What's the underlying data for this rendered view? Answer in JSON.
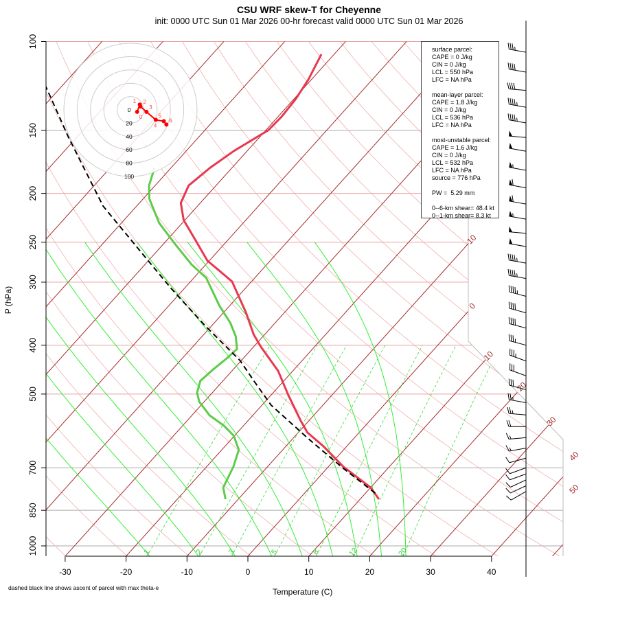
{
  "title": "CSU WRF skew-T for Cheyenne",
  "subtitle": "init: 0000 UTC Sun 01 Mar 2026    00-hr forecast valid 0000 UTC Sun 01 Mar 2026",
  "footnote": "dashed black line shows ascent of parcel with max theta-e",
  "info": {
    "surface_header": "surface parcel:",
    "surface": [
      "CAPE = 0 J/kg",
      "CIN = 0 J/kg",
      "LCL = 550 hPa",
      "LFC = NA hPa"
    ],
    "mean_header": "mean-layer parcel:",
    "mean": [
      "CAPE = 1.8 J/kg",
      "CIN = 0 J/kg",
      "LCL = 536 hPa",
      "LFC = NA hPa"
    ],
    "mu_header": "most-unstable parcel:",
    "mu": [
      "CAPE = 1.6 J/kg",
      "CIN = 0 J/kg",
      "LCL = 532 hPa",
      "LFC = NA hPa",
      "source = 776 hPa"
    ],
    "pw": "PW =  5.29 mm",
    "shear": [
      "0--6-km shear= 48.4 kt",
      "0--1-km shear= 8.3 kt"
    ]
  },
  "chart_data": {
    "type": "line",
    "title": "CSU WRF skew-T for Cheyenne",
    "xlabel": "Temperature (C)",
    "ylabel": "P (hPa)",
    "x_ticks": [
      -30,
      -20,
      -10,
      0,
      10,
      20,
      30,
      40
    ],
    "y_ticks": [
      100,
      150,
      200,
      250,
      300,
      400,
      500,
      700,
      850,
      1000
    ],
    "ylim": [
      1050,
      100
    ],
    "isotherm_labels": [
      -10,
      0,
      10,
      20,
      30,
      40,
      50
    ],
    "mixing_ratio_labels": [
      1,
      2,
      3,
      5,
      8,
      12,
      20
    ],
    "colors": {
      "temperature": "#e8384f",
      "dewpoint": "#5ccc4a",
      "parcel": "#000000",
      "isotherm": "#a52a2a",
      "moist": "#33ee33"
    },
    "temperature": [
      [
        808,
        13.1
      ],
      [
        766,
        10.0
      ],
      [
        697,
        2.5
      ],
      [
        634,
        -3.9
      ],
      [
        596,
        -8.5
      ],
      [
        563,
        -11.5
      ],
      [
        502,
        -17.2
      ],
      [
        450,
        -22.4
      ],
      [
        403,
        -28.8
      ],
      [
        381,
        -31.8
      ],
      [
        344,
        -36.4
      ],
      [
        299,
        -43.2
      ],
      [
        272,
        -50.3
      ],
      [
        244,
        -56.1
      ],
      [
        226,
        -60.2
      ],
      [
        209,
        -63.2
      ],
      [
        193,
        -64.5
      ],
      [
        178,
        -63.6
      ],
      [
        165,
        -62.2
      ],
      [
        150,
        -59.6
      ],
      [
        141,
        -59.4
      ],
      [
        130,
        -59.7
      ],
      [
        119,
        -60.5
      ],
      [
        106,
        -62.1
      ]
    ],
    "dewpoint": [
      [
        808,
        -12.1
      ],
      [
        766,
        -14.2
      ],
      [
        697,
        -15.6
      ],
      [
        645,
        -17.2
      ],
      [
        605,
        -20.1
      ],
      [
        577,
        -23.3
      ],
      [
        551,
        -27.1
      ],
      [
        518,
        -30.8
      ],
      [
        497,
        -32.5
      ],
      [
        471,
        -33.7
      ],
      [
        447,
        -33.3
      ],
      [
        425,
        -32.7
      ],
      [
        407,
        -32.4
      ],
      [
        384,
        -34.5
      ],
      [
        361,
        -37.4
      ],
      [
        334,
        -41.7
      ],
      [
        294,
        -48.0
      ],
      [
        277,
        -52.3
      ],
      [
        252,
        -58.1
      ],
      [
        229,
        -63.8
      ],
      [
        205,
        -69.0
      ],
      [
        193,
        -71.0
      ],
      [
        178,
        -72.7
      ]
    ],
    "parcel": [
      [
        786,
        11.6
      ],
      [
        702,
        2.7
      ],
      [
        615,
        -7.2
      ],
      [
        526,
        -18.5
      ],
      [
        471,
        -24.9
      ],
      [
        429,
        -30.2
      ],
      [
        367,
        -40.9
      ],
      [
        309,
        -52.1
      ],
      [
        256,
        -63.8
      ],
      [
        212,
        -75.5
      ],
      [
        155,
        -91.3
      ],
      [
        108,
        -108.8
      ]
    ],
    "wind_barbs": [
      [
        105,
        280,
        35
      ],
      [
        115,
        280,
        40
      ],
      [
        125,
        275,
        40
      ],
      [
        135,
        280,
        45
      ],
      [
        145,
        280,
        45
      ],
      [
        155,
        275,
        50
      ],
      [
        165,
        280,
        50
      ],
      [
        180,
        280,
        55
      ],
      [
        195,
        280,
        60
      ],
      [
        210,
        280,
        60
      ],
      [
        225,
        280,
        55
      ],
      [
        240,
        275,
        50
      ],
      [
        255,
        280,
        50
      ],
      [
        275,
        280,
        45
      ],
      [
        295,
        280,
        45
      ],
      [
        320,
        285,
        45
      ],
      [
        345,
        285,
        40
      ],
      [
        370,
        285,
        40
      ],
      [
        400,
        285,
        35
      ],
      [
        430,
        290,
        35
      ],
      [
        460,
        290,
        30
      ],
      [
        490,
        285,
        30
      ],
      [
        520,
        280,
        25
      ],
      [
        550,
        275,
        25
      ],
      [
        580,
        270,
        20
      ],
      [
        610,
        265,
        15
      ],
      [
        640,
        260,
        15
      ],
      [
        670,
        255,
        10
      ],
      [
        700,
        250,
        10
      ],
      [
        720,
        250,
        10
      ],
      [
        740,
        245,
        8
      ],
      [
        760,
        245,
        8
      ],
      [
        780,
        240,
        8
      ]
    ],
    "hodograph": {
      "ring_labels": [
        0,
        20,
        40,
        60,
        80,
        100
      ],
      "points": [
        {
          "km": "0",
          "u": 10,
          "v": -3
        },
        {
          "km": "1",
          "u": 14,
          "v": 8
        },
        {
          "km": "2",
          "u": 15,
          "v": 5
        },
        {
          "km": "3",
          "u": 24,
          "v": -3
        },
        {
          "km": "4",
          "u": 38,
          "v": -15
        },
        {
          "km": "5",
          "u": 50,
          "v": -17
        },
        {
          "km": "6",
          "u": 54,
          "v": -22
        }
      ]
    }
  }
}
